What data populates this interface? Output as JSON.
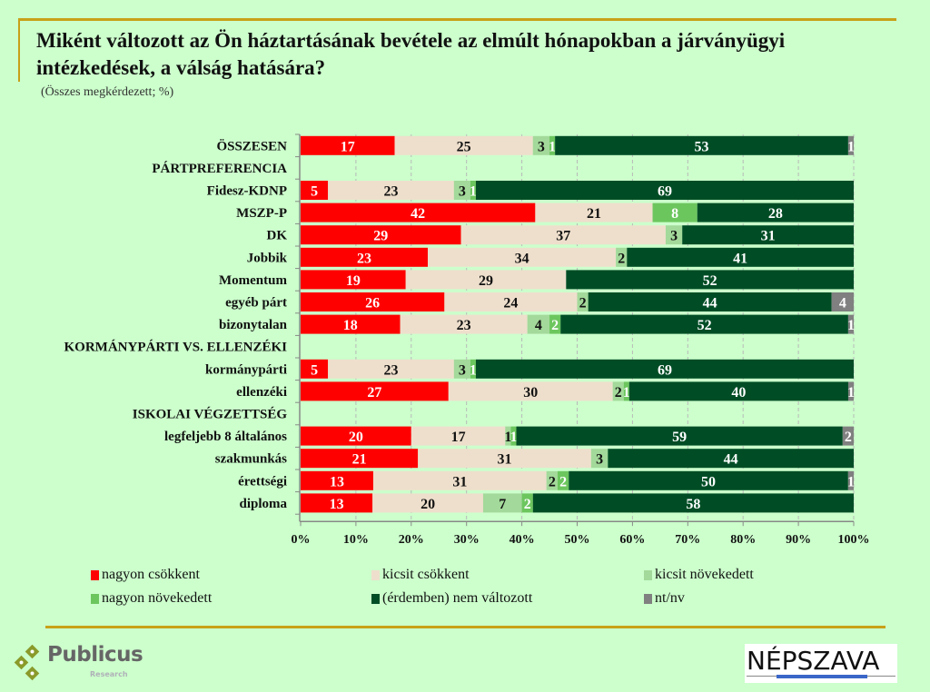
{
  "header": {
    "title": "Miként változott az Ön háztartásának bevétele az elmúlt hónapokban a járványügyi intézkedések, a válság hatására?",
    "subtitle": "(Összes megkérdezett; %)"
  },
  "chart_data": {
    "type": "bar",
    "orientation": "horizontal",
    "stacked": "100%",
    "title": "Miként változott az Ön háztartásának bevétele az elmúlt hónapokban a járványügyi intézkedések, a válság hatására?",
    "subtitle": "(Összes megkérdezett; %)",
    "xlim": [
      0,
      100
    ],
    "x_ticks": [
      "0%",
      "10%",
      "20%",
      "30%",
      "40%",
      "50%",
      "60%",
      "70%",
      "80%",
      "90%",
      "100%"
    ],
    "grid": true,
    "legend_position": "bottom",
    "series": [
      {
        "name": "nagyon csökkent",
        "color": "#ff0000",
        "label_color": "#ffffff"
      },
      {
        "name": "kicsit csökkent",
        "color": "#eedfcc",
        "label_color": "#111111"
      },
      {
        "name": "kicsit növekedett",
        "color": "#a3d99a",
        "label_color": "#111111"
      },
      {
        "name": "nagyon növekedett",
        "color": "#6cc65e",
        "label_color": "#ffffff"
      },
      {
        "name": "(érdemben) nem változott",
        "color": "#004d25",
        "label_color": "#ffffff"
      },
      {
        "name": "nt/nv",
        "color": "#808080",
        "label_color": "#ffffff"
      }
    ],
    "rows": [
      {
        "label": "ÖSSZESEN",
        "bold": true,
        "values": [
          17,
          25,
          3,
          1,
          53,
          1
        ]
      },
      {
        "label": "PÁRTPREFERENCIA",
        "header": true
      },
      {
        "label": "Fidesz-KDNP",
        "values": [
          5,
          23,
          3,
          1,
          69,
          0
        ]
      },
      {
        "label": "MSZP-P",
        "values": [
          42,
          21,
          0,
          8,
          28,
          0
        ]
      },
      {
        "label": "DK",
        "values": [
          29,
          37,
          3,
          0,
          31,
          0
        ]
      },
      {
        "label": "Jobbik",
        "values": [
          23,
          34,
          2,
          0,
          41,
          0
        ]
      },
      {
        "label": "Momentum",
        "values": [
          19,
          29,
          0,
          0,
          52,
          0
        ]
      },
      {
        "label": "egyéb párt",
        "values": [
          26,
          24,
          2,
          0,
          44,
          4
        ]
      },
      {
        "label": "bizonytalan",
        "values": [
          18,
          23,
          4,
          2,
          52,
          1
        ]
      },
      {
        "label": "KORMÁNYPÁRTI VS. ELLENZÉKI",
        "header": true
      },
      {
        "label": "kormánypárti",
        "values": [
          5,
          23,
          3,
          1,
          69,
          0
        ]
      },
      {
        "label": "ellenzéki",
        "values": [
          27,
          30,
          2,
          1,
          40,
          1
        ]
      },
      {
        "label": "ISKOLAI VÉGZETTSÉG",
        "header": true
      },
      {
        "label": "legfeljebb 8 általános",
        "values": [
          20,
          17,
          1,
          1,
          59,
          2
        ]
      },
      {
        "label": "szakmunkás",
        "values": [
          21,
          31,
          3,
          0,
          44,
          0
        ]
      },
      {
        "label": "érettségi",
        "values": [
          13,
          31,
          2,
          2,
          50,
          1
        ]
      },
      {
        "label": "diploma",
        "values": [
          13,
          20,
          7,
          2,
          58,
          0
        ]
      }
    ]
  },
  "legend": [
    {
      "label": "nagyon csökkent",
      "color": "#ff0000"
    },
    {
      "label": "kicsit csökkent",
      "color": "#eedfcc"
    },
    {
      "label": "kicsit növekedett",
      "color": "#a3d99a"
    },
    {
      "label": "nagyon növekedett",
      "color": "#6cc65e"
    },
    {
      "label": "(érdemben) nem változott",
      "color": "#004d25"
    },
    {
      "label": "nt/nv",
      "color": "#808080"
    }
  ],
  "logos": {
    "publicus_name": "Publicus",
    "publicus_sub": "Research",
    "nepszava": "NÉPSZAVA"
  }
}
